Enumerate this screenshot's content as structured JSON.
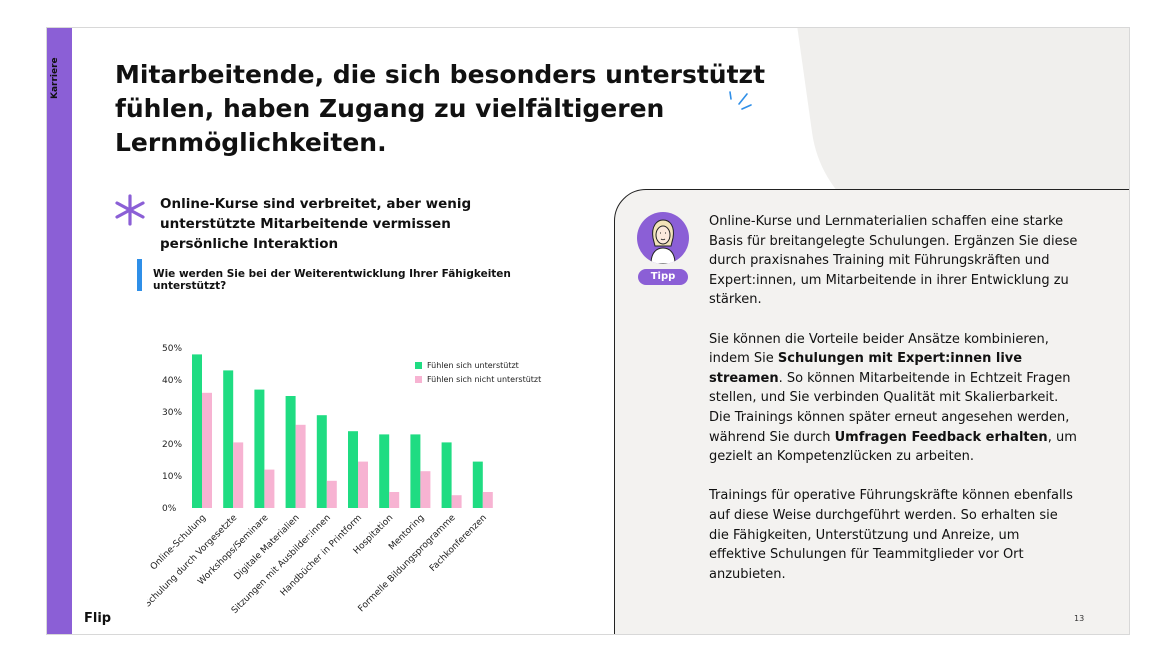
{
  "side_label": "Karriere",
  "headline": "Mitarbeitende, die sich besonders unterstützt fühlen, haben Zugang zu vielfältigeren Lernmöglichkeiten.",
  "subheadline": "Online-Kurse sind verbreitet, aber wenig unterstützte Mitarbeitende vermissen persönliche Interaktion",
  "question": "Wie werden Sie bei der Weiterentwicklung Ihrer Fähigkeiten unterstützt?",
  "brand": "Flip",
  "page_number": "13",
  "colors": {
    "accent_purple": "#8b5fd6",
    "supported": "#1fdc82",
    "not_supported": "#f7b3d2",
    "question_bar": "#2f8fe8"
  },
  "tip": {
    "badge": "Tipp",
    "paragraph1": "Online-Kurse und Lernmaterialien schaffen eine starke Basis für breitangelegte Schulungen. Ergänzen Sie diese durch praxisnahes Training mit Führungskräften und Expert:innen, um Mitarbeitende in ihrer Entwicklung zu stärken.",
    "paragraph2_a": "Sie können die Vorteile beider Ansätze kombinieren, indem Sie ",
    "paragraph2_b": "Schulungen mit Expert:innen live streamen",
    "paragraph2_c": ". So können Mitarbeitende in Echtzeit Fragen stellen, und Sie verbinden Qualität mit Skalierbarkeit. Die Trainings können später erneut angesehen werden, während Sie durch ",
    "paragraph2_d": "Umfragen Feedback erhalten",
    "paragraph2_e": ", um gezielt an Kompetenzlücken zu arbeiten.",
    "paragraph3": "Trainings für operative Führungskräfte können ebenfalls auf diese Weise durchgeführt werden. So erhalten sie die Fähigkeiten, Unterstützung und Anreize, um effektive Schulungen für Teammitglieder vor Ort anzubieten."
  },
  "chart_data": {
    "type": "bar",
    "categories": [
      "Online-Schulung",
      "Schulung durch Vorgesetzte",
      "Workshops/Seminare",
      "Digitale Materialien",
      "Sitzungen mit Ausbilder:innen",
      "Handbücher in Printform",
      "Hospitation",
      "Mentoring",
      "Formelle Bildungsprogramme",
      "Fachkonferenzen"
    ],
    "series": [
      {
        "name": "Fühlen sich unterstützt",
        "values": [
          48,
          43,
          37,
          35,
          29,
          24,
          23,
          23,
          20.5,
          14.5
        ]
      },
      {
        "name": "Fühlen sich nicht unterstützt",
        "values": [
          36,
          20.5,
          12,
          26,
          8.5,
          14.5,
          5,
          11.5,
          4,
          5
        ]
      }
    ],
    "y_ticks": [
      "0%",
      "10%",
      "20%",
      "30%",
      "40%",
      "50%"
    ],
    "ylim": [
      0,
      50
    ],
    "grid": false,
    "legend_position": "top-right"
  }
}
